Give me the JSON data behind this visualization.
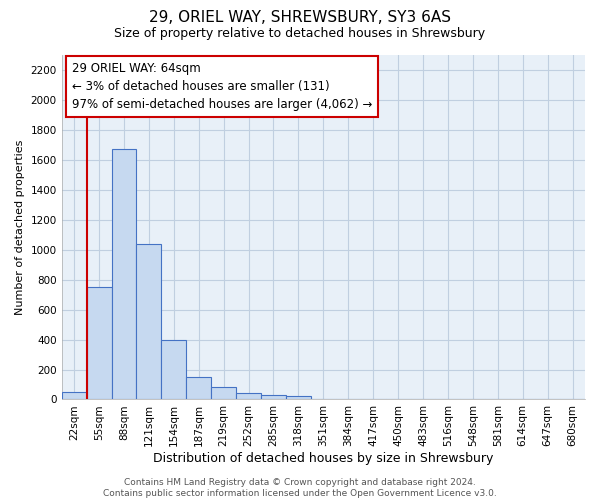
{
  "title": "29, ORIEL WAY, SHREWSBURY, SY3 6AS",
  "subtitle": "Size of property relative to detached houses in Shrewsbury",
  "xlabel": "Distribution of detached houses by size in Shrewsbury",
  "ylabel": "Number of detached properties",
  "bar_labels": [
    "22sqm",
    "55sqm",
    "88sqm",
    "121sqm",
    "154sqm",
    "187sqm",
    "219sqm",
    "252sqm",
    "285sqm",
    "318sqm",
    "351sqm",
    "384sqm",
    "417sqm",
    "450sqm",
    "483sqm",
    "516sqm",
    "548sqm",
    "581sqm",
    "614sqm",
    "647sqm",
    "680sqm"
  ],
  "bar_heights": [
    50,
    750,
    1670,
    1040,
    400,
    150,
    80,
    40,
    30,
    20,
    0,
    0,
    0,
    0,
    0,
    0,
    0,
    0,
    0,
    0,
    0
  ],
  "bar_color": "#c6d9f0",
  "bar_edge_color": "#4472c4",
  "ylim": [
    0,
    2300
  ],
  "yticks": [
    0,
    200,
    400,
    600,
    800,
    1000,
    1200,
    1400,
    1600,
    1800,
    2000,
    2200
  ],
  "annotation_title": "29 ORIEL WAY: 64sqm",
  "annotation_line1": "← 3% of detached houses are smaller (131)",
  "annotation_line2": "97% of semi-detached houses are larger (4,062) →",
  "vline_bin_index": 1,
  "vline_color": "#cc0000",
  "annotation_box_color": "#ffffff",
  "annotation_box_edge_color": "#cc0000",
  "footer_line1": "Contains HM Land Registry data © Crown copyright and database right 2024.",
  "footer_line2": "Contains public sector information licensed under the Open Government Licence v3.0.",
  "bg_color": "#ffffff",
  "plot_bg_color": "#e8f0f8",
  "grid_color": "#c0cfe0",
  "title_fontsize": 11,
  "subtitle_fontsize": 9,
  "xlabel_fontsize": 9,
  "ylabel_fontsize": 8,
  "tick_fontsize": 7.5,
  "footer_fontsize": 6.5,
  "annotation_fontsize": 8.5
}
